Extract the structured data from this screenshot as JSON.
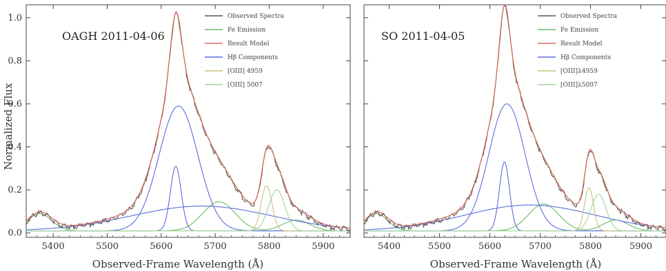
{
  "figure": {
    "ylabel": "Normalized Flux",
    "xlabel": "Observed-Frame Wavelength (Å)",
    "colors": {
      "observed": "#555555",
      "fe": "#66bb66",
      "model": "#d96a5a",
      "broad": "#5a6be0",
      "o4959": "#c8c27a",
      "o5007": "#9fd59a"
    }
  },
  "chart_data": [
    {
      "type": "line",
      "title": "OAGH 2011-04-06",
      "xlim": [
        5350,
        5950
      ],
      "ylim": [
        -0.02,
        1.06
      ],
      "xticks": [
        5400,
        5500,
        5600,
        5700,
        5800,
        5900
      ],
      "yticks": [
        0.0,
        0.2,
        0.4,
        0.6,
        0.8,
        1.0
      ],
      "ytick_labels": [
        "0.0",
        "0.2",
        "0.4",
        "0.6",
        "0.8",
        "1.0"
      ],
      "legend": [
        "Observed Spectra",
        "Fe Emission",
        "Result Model",
        "Hβ Components",
        "[OIII] 4959",
        "[OIII] 5007"
      ],
      "components": {
        "continuum": [
          0.0,
          0.01
        ],
        "fe": [
          [
            0.135,
            5707,
            30
          ],
          [
            0.08,
            5375,
            22
          ],
          [
            0.05,
            5850,
            25
          ]
        ],
        "broad_wide": [
          0.115,
          5675,
          130
        ],
        "broad_mid": [
          0.58,
          5632,
          36
        ],
        "broad_narrow": [
          0.3,
          5627,
          10
        ],
        "o4959": [
          0.21,
          5795,
          10
        ],
        "o5007": [
          0.19,
          5814,
          15
        ],
        "model_extra": [
          [
            0.03,
            5650,
            90
          ]
        ]
      }
    },
    {
      "type": "line",
      "title": "SO 2011-04-05",
      "xlim": [
        5350,
        5950
      ],
      "ylim": [
        -0.02,
        1.06
      ],
      "xticks": [
        5400,
        5500,
        5600,
        5700,
        5800,
        5900
      ],
      "yticks": [
        0.0,
        0.2,
        0.4,
        0.6,
        0.8,
        1.0
      ],
      "ytick_labels": [],
      "legend": [
        "Observed Spectra",
        "Fe Emission",
        "Result Model",
        "Hβ Components",
        "[OIII]λ4959",
        "[OIII]λ5007"
      ],
      "components": {
        "continuum": [
          0.0,
          0.01
        ],
        "fe": [
          [
            0.125,
            5707,
            30
          ],
          [
            0.08,
            5375,
            22
          ],
          [
            0.05,
            5850,
            25
          ]
        ],
        "broad_wide": [
          0.12,
          5680,
          130
        ],
        "broad_mid": [
          0.59,
          5634,
          36
        ],
        "broad_narrow": [
          0.32,
          5629,
          10
        ],
        "o4959": [
          0.2,
          5797,
          9
        ],
        "o5007": [
          0.17,
          5816,
          15
        ],
        "model_extra": [
          [
            0.03,
            5650,
            90
          ]
        ]
      }
    }
  ]
}
